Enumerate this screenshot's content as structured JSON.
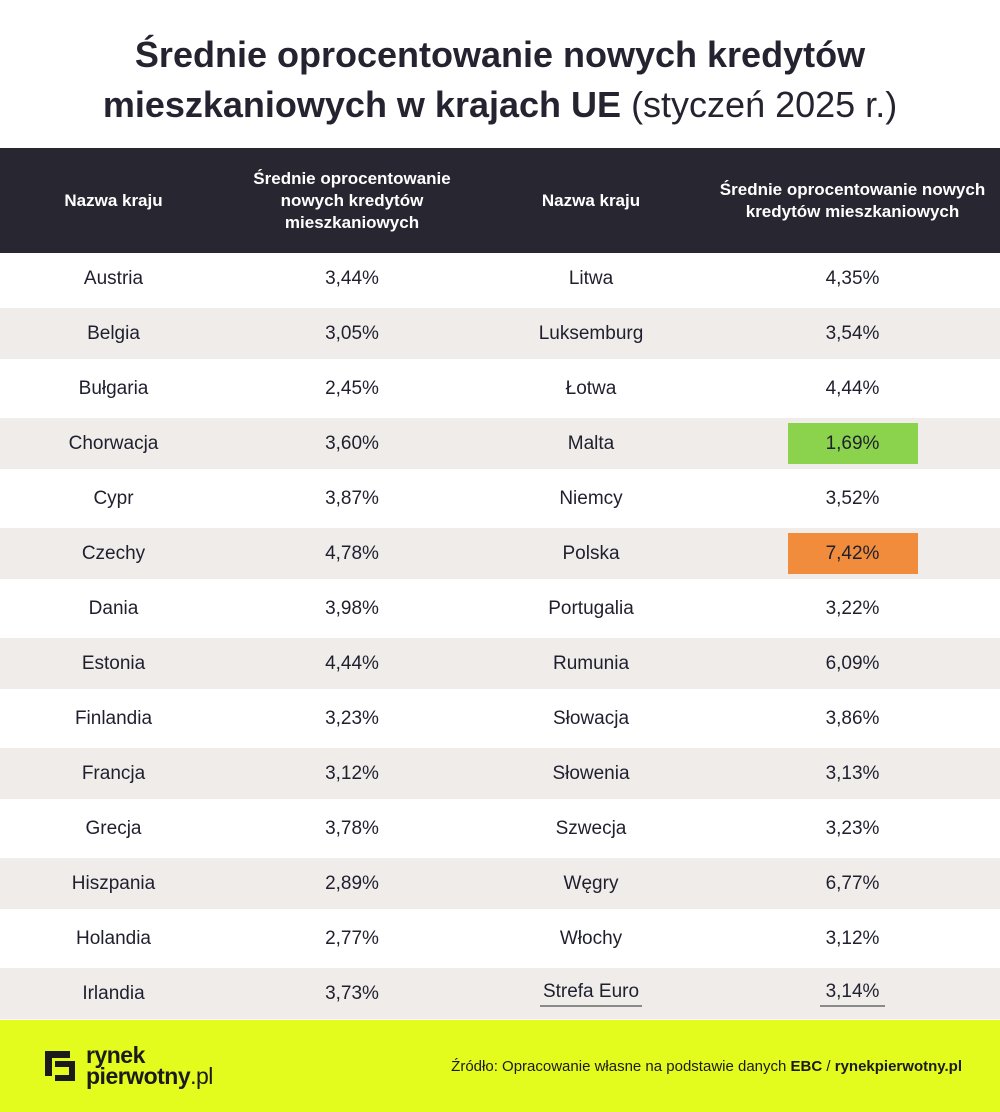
{
  "title": {
    "line1": "Średnie oprocentowanie nowych kredytów",
    "line2_bold": "mieszkaniowych w krajach UE",
    "line2_light": "(styczeń 2025 r.)"
  },
  "headers": {
    "country": "Nazwa kraju",
    "rate": "Średnie oprocentowanie nowych kredytów mieszkaniowych"
  },
  "colors": {
    "lowest": "#8bd34d",
    "highest": "#f08c3c",
    "header_bg": "#272631",
    "footer_bg": "#e4fb1e"
  },
  "chart_data": {
    "type": "table",
    "title": "Średnie oprocentowanie nowych kredytów mieszkaniowych w krajach UE (styczeń 2025 r.)",
    "columns": [
      "Nazwa kraju",
      "Średnie oprocentowanie nowych kredytów mieszkaniowych",
      "Nazwa kraju",
      "Średnie oprocentowanie nowych kredytów mieszkaniowych"
    ],
    "rows": [
      [
        "Austria",
        "3,44%",
        "Litwa",
        "4,35%"
      ],
      [
        "Belgia",
        "3,05%",
        "Luksemburg",
        "3,54%"
      ],
      [
        "Bułgaria",
        "2,45%",
        "Łotwa",
        "4,44%"
      ],
      [
        "Chorwacja",
        "3,60%",
        "Malta",
        "1,69%"
      ],
      [
        "Cypr",
        "3,87%",
        "Niemcy",
        "3,52%"
      ],
      [
        "Czechy",
        "4,78%",
        "Polska",
        "7,42%"
      ],
      [
        "Dania",
        "3,98%",
        "Portugalia",
        "3,22%"
      ],
      [
        "Estonia",
        "4,44%",
        "Rumunia",
        "6,09%"
      ],
      [
        "Finlandia",
        "3,23%",
        "Słowacja",
        "3,86%"
      ],
      [
        "Francja",
        "3,12%",
        "Słowenia",
        "3,13%"
      ],
      [
        "Grecja",
        "3,78%",
        "Szwecja",
        "3,23%"
      ],
      [
        "Hiszpania",
        "2,89%",
        "Węgry",
        "6,77%"
      ],
      [
        "Holandia",
        "2,77%",
        "Włochy",
        "3,12%"
      ],
      [
        "Irlandia",
        "3,73%",
        "Strefa Euro",
        "3,14%"
      ]
    ],
    "highlight": {
      "lowest": "Malta",
      "highest": "Polska",
      "summary": "Strefa Euro"
    }
  },
  "footer": {
    "logo_line1": "rynek",
    "logo_line2": "pierwotny",
    "logo_tld": ".pl",
    "source_prefix": "Źródło: Opracowanie własne na podstawie danych ",
    "source_ebc": "EBC",
    "source_sep": " / ",
    "source_site": "rynekpierwotny.pl"
  }
}
